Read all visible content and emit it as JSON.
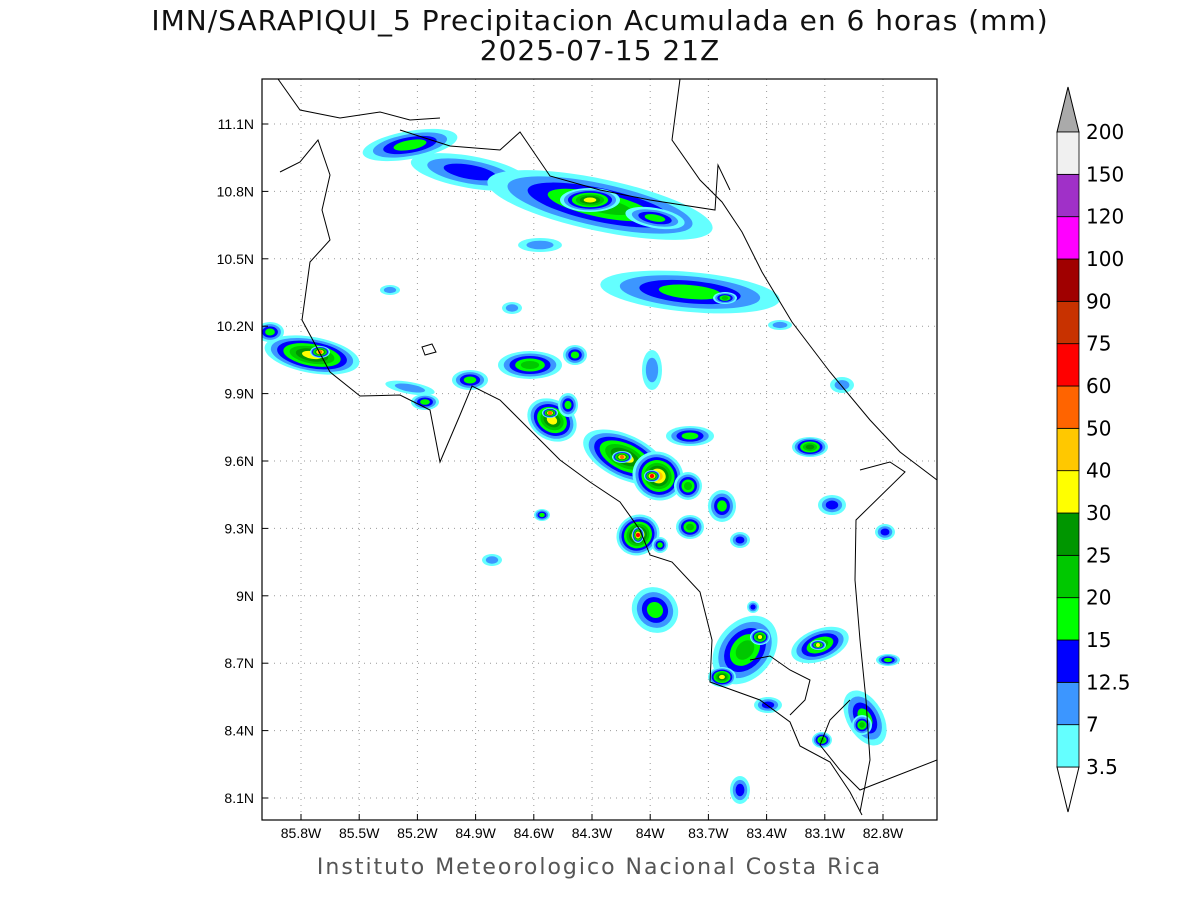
{
  "title": {
    "line1": "IMN/SARAPIQUI_5 Precipitacion Acumulada en 6 horas (mm)",
    "line2": "2025-07-15 21Z"
  },
  "footer": "Instituto Meteorologico Nacional Costa Rica",
  "map": {
    "lon_ticks": [
      "85.8W",
      "85.5W",
      "85.2W",
      "84.9W",
      "84.6W",
      "84.3W",
      "84W",
      "83.7W",
      "83.4W",
      "83.1W",
      "82.8W"
    ],
    "lat_ticks": [
      "11.1N",
      "10.8N",
      "10.5N",
      "10.2N",
      "9.9N",
      "9.6N",
      "9.3N",
      "9N",
      "8.7N",
      "8.4N",
      "8.1N"
    ]
  },
  "colorbar": {
    "over_color": "#aaaaaa",
    "under_color": "#ffffff",
    "levels": [
      {
        "label": "3.5",
        "color": "#64ffff"
      },
      {
        "label": "7",
        "color": "#3c96ff"
      },
      {
        "label": "12.5",
        "color": "#0000ff"
      },
      {
        "label": "15",
        "color": "#00ff00"
      },
      {
        "label": "20",
        "color": "#00c800"
      },
      {
        "label": "25",
        "color": "#009600"
      },
      {
        "label": "30",
        "color": "#ffff00"
      },
      {
        "label": "40",
        "color": "#ffc800"
      },
      {
        "label": "50",
        "color": "#ff6400"
      },
      {
        "label": "60",
        "color": "#ff0000"
      },
      {
        "label": "75",
        "color": "#c83200"
      },
      {
        "label": "90",
        "color": "#a00000"
      },
      {
        "label": "100",
        "color": "#ff00ff"
      },
      {
        "label": "120",
        "color": "#a030c8"
      },
      {
        "label": "150",
        "color": "#f0f0f0"
      },
      {
        "label": "200",
        "color": null
      }
    ]
  }
}
